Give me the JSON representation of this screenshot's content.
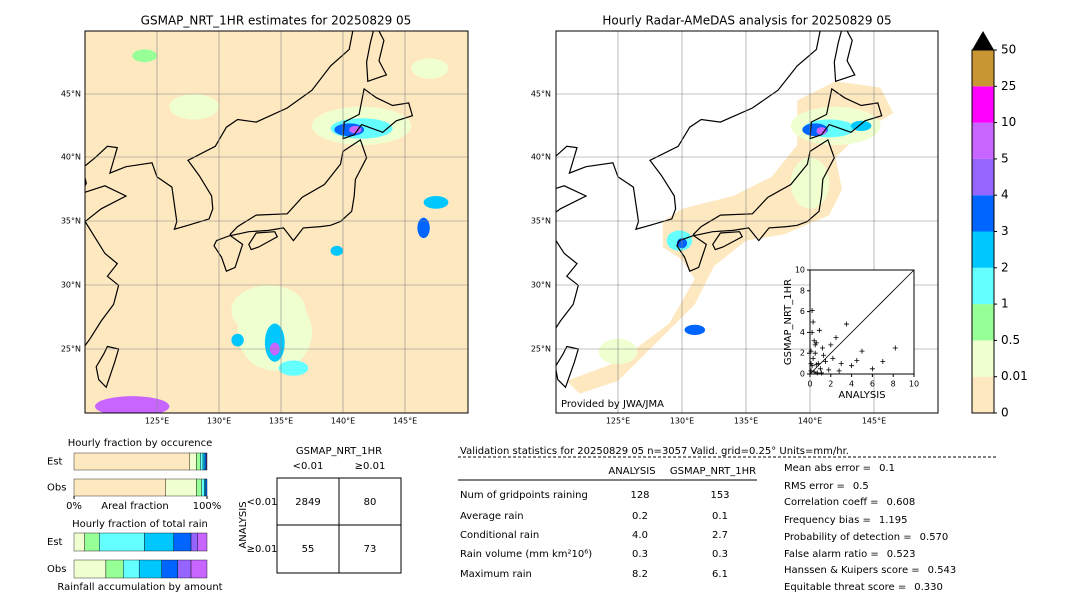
{
  "left_map": {
    "title": "GSMAP_NRT_1HR estimates for 20250829 05",
    "lat_labels": [
      "45°N",
      "40°N",
      "35°N",
      "30°N",
      "25°N"
    ],
    "lon_labels": [
      "125°E",
      "130°E",
      "135°E",
      "140°E",
      "145°E"
    ]
  },
  "right_map": {
    "title": "Hourly Radar-AMeDAS analysis for 20250829 05",
    "lat_labels": [
      "45°N",
      "40°N",
      "35°N",
      "30°N",
      "25°N"
    ],
    "lon_labels": [
      "125°E",
      "130°E",
      "135°E",
      "140°E",
      "145°E"
    ],
    "credit": "Provided by JWA/JMA"
  },
  "colorbar": {
    "levels": [
      0,
      0.01,
      0.5,
      1,
      2,
      3,
      4,
      5,
      10,
      25,
      50
    ],
    "colors": [
      "#fee8c0",
      "#f0ffd0",
      "#96ff96",
      "#64ffff",
      "#00c8ff",
      "#0064ff",
      "#9664ff",
      "#c864ff",
      "#ff00ff",
      "#c89632"
    ],
    "over_color": "#000000"
  },
  "chart_data": [
    {
      "type": "scatter",
      "xlabel": "ANALYSIS",
      "ylabel": "GSMAP_NRT_1HR",
      "xlim": [
        0,
        10
      ],
      "ylim": [
        0,
        10
      ],
      "xticks": [
        0,
        2,
        4,
        6,
        8,
        10
      ],
      "yticks": [
        0,
        2,
        4,
        6,
        8,
        10
      ],
      "color": "#000000",
      "x": [
        0.1,
        0.2,
        0.3,
        0.5,
        0.4,
        0.6,
        0.8,
        1.0,
        1.2,
        0.3,
        0.2,
        0.7,
        1.5,
        2.0,
        2.5,
        3.0,
        1.8,
        0.9,
        0.5,
        4.0,
        5.0,
        6.0,
        7.0,
        8.2,
        3.5,
        2.2,
        1.1,
        0.1,
        0.1,
        0.2,
        0.4,
        1.3,
        2.8,
        4.5,
        0.6
      ],
      "values": [
        0.3,
        0.8,
        1.5,
        2.0,
        0.2,
        3.0,
        1.0,
        0.5,
        2.5,
        5.0,
        6.1,
        0.1,
        1.2,
        2.8,
        3.5,
        1.0,
        0.4,
        4.2,
        2.8,
        0.8,
        2.2,
        0.5,
        1.2,
        2.5,
        4.8,
        1.5,
        0.1,
        1.0,
        2.2,
        4.0,
        3.2,
        1.8,
        0.3,
        1.3,
        0.9
      ]
    },
    {
      "type": "stacked_barh",
      "title": "Hourly fraction by occurence",
      "xlabel": "Areal fraction",
      "categories": [
        "Est",
        "Obs"
      ],
      "xlim": [
        0,
        100
      ],
      "xticks": [
        {
          "value": 0,
          "label": "0%"
        },
        {
          "value": 100,
          "label": "100%"
        }
      ],
      "series": [
        {
          "color": "#fee8c0",
          "values": [
            87,
            69
          ]
        },
        {
          "color": "#f0ffd0",
          "values": [
            5,
            23
          ]
        },
        {
          "color": "#96ff96",
          "values": [
            3,
            4
          ]
        },
        {
          "color": "#64ffff",
          "values": [
            2,
            2
          ]
        },
        {
          "color": "#00c8ff",
          "values": [
            1.5,
            1
          ]
        },
        {
          "color": "#0064ff",
          "values": [
            1,
            1
          ]
        },
        {
          "color": "#9664ff",
          "values": [
            0.5,
            0
          ]
        }
      ]
    },
    {
      "type": "stacked_barh",
      "title": "Hourly fraction of total rain",
      "xlabel": "Rainfall accumulation by amount",
      "categories": [
        "Est",
        "Obs"
      ],
      "xlim": [
        0,
        100
      ],
      "series": [
        {
          "color": "#f0ffd0",
          "values": [
            8,
            24
          ]
        },
        {
          "color": "#96ff96",
          "values": [
            11,
            13
          ]
        },
        {
          "color": "#64ffff",
          "values": [
            34,
            12
          ]
        },
        {
          "color": "#00c8ff",
          "values": [
            22,
            17
          ]
        },
        {
          "color": "#0064ff",
          "values": [
            13,
            12
          ]
        },
        {
          "color": "#9664ff",
          "values": [
            5,
            10
          ]
        },
        {
          "color": "#c864ff",
          "values": [
            7,
            12
          ]
        }
      ]
    }
  ],
  "contingency": {
    "title": "GSMAP_NRT_1HR",
    "col_headers": [
      "<0.01",
      "≥0.01"
    ],
    "row_label": "ANALYSIS",
    "row_headers": [
      "<0.01",
      "≥0.01"
    ],
    "cells": [
      [
        "2849",
        "80"
      ],
      [
        "55",
        "73"
      ]
    ]
  },
  "validation": {
    "header": "Validation statistics for 20250829 05  n=3057 Valid. grid=0.25° Units=mm/hr.",
    "columns": [
      "ANALYSIS",
      "GSMAP_NRT_1HR"
    ],
    "rows": [
      {
        "label": "Num of gridpoints raining",
        "values": [
          "128",
          "153"
        ]
      },
      {
        "label": "Average rain",
        "values": [
          "0.2",
          "0.1"
        ]
      },
      {
        "label": "Conditional rain",
        "values": [
          "4.0",
          "2.7"
        ]
      },
      {
        "label": "Rain volume (mm km²10⁶)",
        "values": [
          "0.3",
          "0.3"
        ]
      },
      {
        "label": "Maximum rain",
        "values": [
          "8.2",
          "6.1"
        ]
      }
    ],
    "scores": [
      {
        "label": "Mean abs error =",
        "value": "0.1"
      },
      {
        "label": "RMS error =",
        "value": "0.5"
      },
      {
        "label": "Correlation coeff =",
        "value": "0.608"
      },
      {
        "label": "Frequency bias =",
        "value": "1.195"
      },
      {
        "label": "Probability of detection =",
        "value": "0.570"
      },
      {
        "label": "False alarm ratio =",
        "value": "0.523"
      },
      {
        "label": "Hanssen & Kuipers score =",
        "value": "0.543"
      },
      {
        "label": "Equitable threat score =",
        "value": "0.330"
      }
    ]
  }
}
